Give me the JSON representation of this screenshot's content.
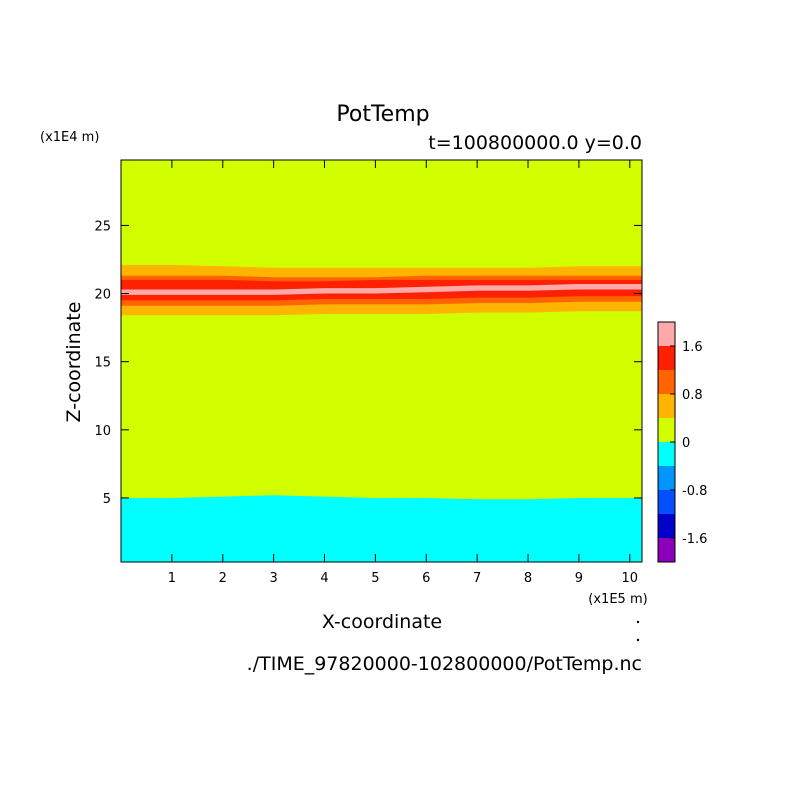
{
  "chart_data": {
    "type": "heatmap",
    "title": "PotTemp",
    "subtitle": "t=100800000.0 y=0.0",
    "xlabel": "X-coordinate",
    "ylabel": "Z-coordinate",
    "x_unit": "(x1E5 m)",
    "y_unit": "(x1E4 m)",
    "footer": "./TIME_97820000-102800000/PotTemp.nc",
    "xlim": [
      0,
      10.24
    ],
    "ylim": [
      0.3,
      29.8
    ],
    "x_ticks": [
      1,
      2,
      3,
      4,
      5,
      6,
      7,
      8,
      9,
      10
    ],
    "x_tick_labels": [
      "1",
      "2",
      "3",
      "4",
      "5",
      "6",
      "7",
      "8",
      "9",
      "10"
    ],
    "y_ticks": [
      5,
      10,
      15,
      20,
      25
    ],
    "y_tick_labels": [
      "5",
      "10",
      "15",
      "20",
      "25"
    ],
    "colorbar": {
      "levels": [
        -2.0,
        -1.6,
        -1.2,
        -0.8,
        -0.4,
        0,
        0.4,
        0.8,
        1.2,
        1.6,
        2.0
      ],
      "colors": [
        "#8b00b8",
        "#0000c8",
        "#0050ff",
        "#0096ff",
        "#00ffff",
        "#d2ff00",
        "#ffb400",
        "#ff6400",
        "#ff2000",
        "#ffaaaa"
      ],
      "tick_values": [
        -1.6,
        -0.8,
        0,
        0.8,
        1.6
      ],
      "tick_labels": [
        "-1.6",
        "-0.8",
        "0",
        "0.8",
        "1.6"
      ]
    },
    "background_color": "#d2ff00",
    "bands": [
      {
        "name": "lower-cold-layer",
        "color": "#00ffff",
        "x": [
          0,
          1,
          2,
          3,
          4,
          5,
          6,
          7,
          8,
          9,
          10.24
        ],
        "bottom": [
          0.3,
          0.3,
          0.3,
          0.3,
          0.3,
          0.3,
          0.3,
          0.3,
          0.3,
          0.3,
          0.3
        ],
        "top": [
          5.0,
          5.0,
          5.1,
          5.2,
          5.1,
          5.0,
          5.0,
          4.9,
          4.9,
          5.0,
          5.0
        ]
      },
      {
        "name": "warm-layer-outer",
        "color": "#ffb400",
        "x": [
          0,
          1,
          2,
          3,
          4,
          5,
          6,
          7,
          8,
          9,
          10.24
        ],
        "bottom": [
          18.4,
          18.4,
          18.4,
          18.4,
          18.5,
          18.5,
          18.5,
          18.6,
          18.6,
          18.7,
          18.7
        ],
        "top": [
          22.1,
          22.1,
          22.0,
          21.9,
          21.9,
          21.9,
          21.9,
          21.9,
          21.9,
          22.0,
          22.0
        ]
      },
      {
        "name": "warm-layer-mid",
        "color": "#ff6400",
        "x": [
          0,
          1,
          2,
          3,
          4,
          5,
          6,
          7,
          8,
          9,
          10.24
        ],
        "bottom": [
          19.1,
          19.1,
          19.1,
          19.1,
          19.2,
          19.2,
          19.2,
          19.3,
          19.3,
          19.4,
          19.4
        ],
        "top": [
          21.3,
          21.3,
          21.3,
          21.2,
          21.2,
          21.2,
          21.3,
          21.3,
          21.3,
          21.3,
          21.3
        ]
      },
      {
        "name": "warm-layer-core",
        "color": "#ff2000",
        "x": [
          0,
          1,
          2,
          3,
          4,
          5,
          6,
          7,
          8,
          9,
          10.24
        ],
        "bottom": [
          19.5,
          19.5,
          19.5,
          19.5,
          19.6,
          19.6,
          19.6,
          19.7,
          19.7,
          19.8,
          19.8
        ],
        "top": [
          21.0,
          21.0,
          21.0,
          20.9,
          20.9,
          21.0,
          21.0,
          21.0,
          21.0,
          21.0,
          21.0
        ]
      },
      {
        "name": "warm-layer-peak",
        "color": "#ffaaaa",
        "x": [
          0,
          1,
          2,
          3,
          4,
          5,
          6,
          7,
          8,
          9,
          10.24
        ],
        "bottom": [
          19.9,
          19.9,
          19.9,
          19.9,
          20.0,
          20.0,
          20.1,
          20.2,
          20.2,
          20.3,
          20.3
        ],
        "top": [
          20.3,
          20.3,
          20.3,
          20.3,
          20.4,
          20.4,
          20.5,
          20.6,
          20.6,
          20.7,
          20.7
        ]
      }
    ]
  }
}
